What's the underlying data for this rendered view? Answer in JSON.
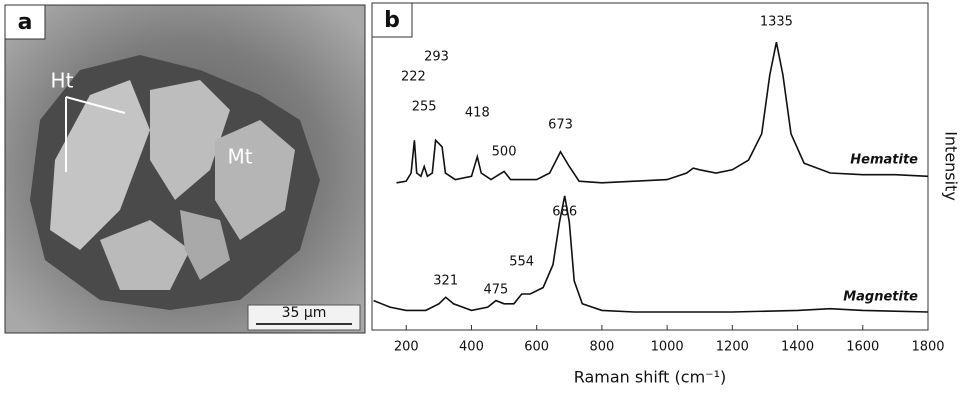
{
  "panel_a": {
    "label": "a",
    "callouts": [
      "Ht",
      "Mt"
    ],
    "scale_bar": "35 µm"
  },
  "chart_data": {
    "type": "line",
    "panel_label": "b",
    "x_label": "Raman shift (cm⁻¹)",
    "y_label": "Intensity",
    "xlim": [
      95,
      1800
    ],
    "xticks": [
      200,
      400,
      600,
      800,
      1000,
      1200,
      1400,
      1600,
      1800
    ],
    "ylim": [
      0,
      100
    ],
    "series": [
      {
        "name": "Hematite",
        "color": "#111111",
        "x": [
          170,
          200,
          215,
          225,
          232,
          245,
          255,
          265,
          280,
          290,
          300,
          310,
          320,
          350,
          400,
          418,
          430,
          460,
          500,
          520,
          600,
          640,
          673,
          700,
          730,
          800,
          900,
          1000,
          1060,
          1080,
          1100,
          1150,
          1200,
          1250,
          1290,
          1315,
          1335,
          1355,
          1380,
          1420,
          1500,
          1600,
          1700,
          1800
        ],
        "values": [
          45,
          45.5,
          48,
          58,
          48,
          47,
          50,
          47,
          48,
          58,
          57,
          56,
          48,
          46,
          47,
          53,
          48,
          46,
          48.5,
          46,
          46,
          48,
          54.5,
          50,
          45.5,
          45,
          45.5,
          46,
          48,
          49.5,
          49,
          48,
          49,
          52,
          60,
          78,
          88,
          78,
          60,
          51,
          48,
          47.5,
          47.5,
          47
        ],
        "peaks": [
          222,
          293,
          255,
          418,
          500,
          673,
          1335
        ]
      },
      {
        "name": "Magnetite",
        "color": "#111111",
        "x": [
          100,
          150,
          200,
          260,
          300,
          321,
          345,
          400,
          450,
          475,
          500,
          530,
          554,
          580,
          620,
          650,
          670,
          686,
          700,
          715,
          740,
          800,
          900,
          1000,
          1200,
          1400,
          1500,
          1600,
          1800
        ],
        "values": [
          9,
          7,
          6,
          6,
          8,
          10,
          8,
          6,
          7,
          9,
          8,
          8,
          11,
          11,
          13,
          20,
          33,
          41,
          33,
          15,
          8,
          6,
          5.5,
          5.5,
          5.5,
          6,
          6.5,
          6,
          5.5
        ],
        "peaks": [
          686,
          321,
          475,
          554
        ]
      }
    ]
  }
}
